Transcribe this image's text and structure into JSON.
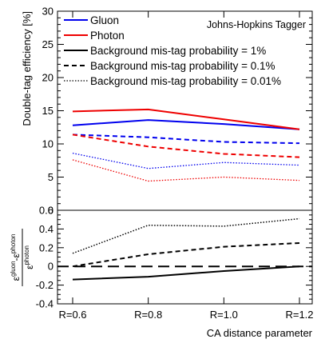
{
  "chart_data": [
    {
      "type": "line",
      "panel": "top",
      "annotation": "Johns-Hopkins Tagger",
      "ylabel": "Double-tag efficiency [%]",
      "xlabel": "",
      "categories": [
        "R=0.6",
        "R=0.8",
        "R=1.0",
        "R=1.2"
      ],
      "ylim": [
        0,
        30
      ],
      "yticks": [
        0,
        5,
        10,
        15,
        20,
        25,
        30
      ],
      "legend": {
        "placement": "top",
        "entries": [
          {
            "label": "Gluon",
            "color": "#0000ee",
            "style": "solid"
          },
          {
            "label": "Photon",
            "color": "#ee0000",
            "style": "solid"
          },
          {
            "label": "Background mis-tag probability = 1%",
            "color": "#000000",
            "style": "solid"
          },
          {
            "label": "Background mis-tag probability = 0.1%",
            "color": "#000000",
            "style": "dashed"
          },
          {
            "label": "Background mis-tag probability = 0.01%",
            "color": "#000000",
            "style": "dotted"
          }
        ]
      },
      "series": [
        {
          "name": "Gluon",
          "mistag": "1%",
          "color": "#0000ee",
          "style": "solid",
          "values": [
            12.8,
            13.6,
            13.0,
            12.2
          ]
        },
        {
          "name": "Photon",
          "mistag": "1%",
          "color": "#ee0000",
          "style": "solid",
          "values": [
            14.9,
            15.2,
            13.7,
            12.2
          ]
        },
        {
          "name": "Gluon",
          "mistag": "0.1%",
          "color": "#0000ee",
          "style": "dashed",
          "values": [
            11.4,
            11.0,
            10.3,
            10.1
          ]
        },
        {
          "name": "Photon",
          "mistag": "0.1%",
          "color": "#ee0000",
          "style": "dashed",
          "values": [
            11.4,
            9.6,
            8.5,
            8.0
          ]
        },
        {
          "name": "Gluon",
          "mistag": "0.01%",
          "color": "#0000ee",
          "style": "dotted",
          "values": [
            8.6,
            6.3,
            7.2,
            6.8
          ]
        },
        {
          "name": "Photon",
          "mistag": "0.01%",
          "color": "#ee0000",
          "style": "dotted",
          "values": [
            7.6,
            4.4,
            5.0,
            4.5
          ]
        }
      ]
    },
    {
      "type": "line",
      "panel": "bottom",
      "ylabel_parts": {
        "eps": "ε",
        "sup_gluon": "gluon",
        "minus": "-",
        "sup_photon": "photon"
      },
      "xlabel": "CA distance parameter",
      "categories": [
        "R=0.6",
        "R=0.8",
        "R=1.0",
        "R=1.2"
      ],
      "ylim": [
        -0.4,
        0.6
      ],
      "yticks": [
        -0.4,
        -0.2,
        0,
        0.2,
        0.4,
        0.6
      ],
      "reference_line": {
        "y": 0,
        "style": "long-dashed"
      },
      "series": [
        {
          "name": "Background mis-tag probability = 1%",
          "style": "solid",
          "values": [
            -0.14,
            -0.11,
            -0.05,
            0.0
          ]
        },
        {
          "name": "Background mis-tag probability = 0.1%",
          "style": "dashed",
          "values": [
            0.0,
            0.13,
            0.21,
            0.25
          ]
        },
        {
          "name": "Background mis-tag probability = 0.01%",
          "style": "dotted",
          "values": [
            0.14,
            0.44,
            0.43,
            0.51
          ]
        }
      ]
    }
  ]
}
